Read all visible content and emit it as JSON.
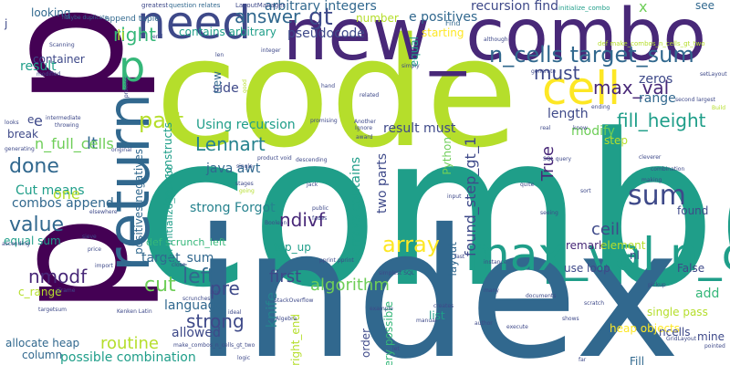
{
  "palette": {
    "yellow": "#fde725",
    "lime": "#b5de2b",
    "green": "#6ece58",
    "lightgreen": "#35b779",
    "teal": "#1f9e89",
    "cyan": "#26828e",
    "blue": "#31688e",
    "indigo": "#3e4989",
    "purple": "#482878",
    "darkpurple": "#440154"
  },
  "words": [
    {
      "text": "combo",
      "color": "teal"
    },
    {
      "text": "index",
      "color": "blue"
    },
    {
      "text": "code",
      "color": "lime"
    },
    {
      "text": "p",
      "color": "darkpurple"
    },
    {
      "text": "p",
      "color": "darkpurple"
    },
    {
      "text": "new_combo",
      "color": "purple"
    },
    {
      "text": "return",
      "color": "blue"
    },
    {
      "text": "need",
      "color": "indigo"
    },
    {
      "text": "cell",
      "color": "yellow"
    },
    {
      "text": "max_val n_cells",
      "color": "teal"
    },
    {
      "text": "p",
      "color": "lightgreen"
    },
    {
      "text": "n_cells target_sum",
      "color": "blue"
    },
    {
      "text": "sum",
      "color": "indigo"
    },
    {
      "text": "Lennart",
      "color": "cyan"
    },
    {
      "text": "part",
      "color": "lime"
    },
    {
      "text": "array",
      "color": "yellow"
    },
    {
      "text": "value",
      "color": "blue"
    },
    {
      "text": "done",
      "color": "blue"
    },
    {
      "text": "gt",
      "color": "indigo"
    },
    {
      "text": "right",
      "color": "lightgreen"
    },
    {
      "text": "answer",
      "color": "blue"
    },
    {
      "text": "fill_height",
      "color": "teal"
    },
    {
      "text": "max_val",
      "color": "purple"
    },
    {
      "text": "must",
      "color": "indigo"
    },
    {
      "text": "cut",
      "color": "green"
    },
    {
      "text": "left",
      "color": "blue"
    },
    {
      "text": "strong",
      "color": "indigo"
    },
    {
      "text": "pre",
      "color": "indigo"
    },
    {
      "text": "algorithm",
      "color": "green"
    },
    {
      "text": "first",
      "color": "indigo"
    },
    {
      "text": "ndivf",
      "color": "purple"
    },
    {
      "text": "nmodf",
      "color": "purple"
    },
    {
      "text": "ceil",
      "color": "indigo"
    },
    {
      "text": "True",
      "color": "purple"
    },
    {
      "text": "routine",
      "color": "lime"
    },
    {
      "text": "knife",
      "color": "cyan"
    },
    {
      "text": "found_step_gt_1",
      "color": "indigo"
    },
    {
      "text": "arbitrary integers",
      "color": "blue"
    },
    {
      "text": "recursion find",
      "color": "indigo"
    },
    {
      "text": "e positives",
      "color": "blue"
    },
    {
      "text": "pseudocode",
      "color": "indigo"
    },
    {
      "text": "contains arbitrary",
      "color": "teal"
    },
    {
      "text": "li",
      "color": "lime"
    },
    {
      "text": "x",
      "color": "green"
    },
    {
      "text": "result must",
      "color": "indigo"
    },
    {
      "text": "length",
      "color": "indigo"
    },
    {
      "text": "zeros",
      "color": "indigo"
    },
    {
      "text": "range",
      "color": "blue"
    },
    {
      "text": "modify",
      "color": "green"
    },
    {
      "text": "side",
      "color": "indigo"
    },
    {
      "text": "lt",
      "color": "blue"
    },
    {
      "text": "n_full_cells",
      "color": "green"
    },
    {
      "text": "e",
      "color": "indigo"
    },
    {
      "text": "Using recursion",
      "color": "teal"
    },
    {
      "text": "Cut means",
      "color": "teal"
    },
    {
      "text": "combos append",
      "color": "blue"
    },
    {
      "text": "equal sum",
      "color": "teal"
    },
    {
      "text": "one",
      "color": "lime"
    },
    {
      "text": "java awt",
      "color": "blue"
    },
    {
      "text": "strong Forgot",
      "color": "cyan"
    },
    {
      "text": "target_sum",
      "color": "blue"
    },
    {
      "text": "language",
      "color": "blue"
    },
    {
      "text": "allowed",
      "color": "indigo"
    },
    {
      "text": "possible combination",
      "color": "teal"
    },
    {
      "text": "allocate heap",
      "color": "blue"
    },
    {
      "text": "column",
      "color": "blue"
    },
    {
      "text": "c_range",
      "color": "lime"
    },
    {
      "text": "heap objects",
      "color": "yellow"
    },
    {
      "text": "single pass",
      "color": "lime"
    },
    {
      "text": "ncells",
      "color": "indigo"
    },
    {
      "text": "add",
      "color": "lightgreen"
    },
    {
      "text": "use loop",
      "color": "indigo"
    },
    {
      "text": "layout",
      "color": "blue"
    },
    {
      "text": "two parts",
      "color": "indigo"
    },
    {
      "text": "arrays contains",
      "color": "teal"
    },
    {
      "text": "positives negatives",
      "color": "blue"
    },
    {
      "text": "def scrunch_left",
      "color": "lightgreen"
    },
    {
      "text": "new",
      "color": "blue"
    },
    {
      "text": "result",
      "color": "teal"
    },
    {
      "text": "container",
      "color": "indigo"
    },
    {
      "text": "looking",
      "color": "blue"
    },
    {
      "text": "top_up",
      "color": "teal"
    },
    {
      "text": "remark",
      "color": "purple"
    },
    {
      "text": "element",
      "color": "lime"
    },
    {
      "text": "found",
      "color": "indigo"
    },
    {
      "text": "Python",
      "color": "green"
    },
    {
      "text": "equal",
      "color": "teal"
    },
    {
      "text": "starting",
      "color": "yellow"
    },
    {
      "text": "number",
      "color": "lime"
    },
    {
      "text": "see",
      "color": "blue"
    },
    {
      "text": "Fill",
      "color": "blue"
    },
    {
      "text": "mine",
      "color": "indigo"
    },
    {
      "text": "False",
      "color": "indigo"
    },
    {
      "text": "list",
      "color": "teal"
    },
    {
      "text": "every possible",
      "color": "lightgreen"
    },
    {
      "text": "order",
      "color": "indigo"
    },
    {
      "text": "right_end",
      "color": "lime"
    },
    {
      "text": "loop constructs",
      "color": "teal"
    },
    {
      "text": "def initialize_combo",
      "color": "teal"
    },
    {
      "text": "nl",
      "color": "indigo"
    },
    {
      "text": "step",
      "color": "lime"
    },
    {
      "text": "append tuple",
      "color": "blue"
    },
    {
      "text": "e",
      "color": "indigo"
    },
    {
      "text": "break",
      "color": "indigo"
    },
    {
      "text": "j",
      "color": "indigo"
    },
    {
      "text": "LayoutManager",
      "color": "indigo"
    },
    {
      "text": "greatest",
      "color": "indigo"
    },
    {
      "text": "question relates",
      "color": "blue"
    },
    {
      "text": "maybe duplicate",
      "color": "blue"
    },
    {
      "text": "initialize_combo",
      "color": "teal"
    },
    {
      "text": "def make_combos_n_cells_gt_two",
      "color": "lime"
    },
    {
      "text": "Scanning",
      "color": "indigo"
    },
    {
      "text": "modified",
      "color": "indigo"
    },
    {
      "text": "Find",
      "color": "blue"
    },
    {
      "text": "although",
      "color": "indigo"
    },
    {
      "text": "process",
      "color": "indigo"
    },
    {
      "text": "integer",
      "color": "indigo"
    },
    {
      "text": "end",
      "color": "indigo"
    },
    {
      "text": "generate",
      "color": "indigo"
    },
    {
      "text": "setLayout",
      "color": "indigo"
    },
    {
      "text": "second largest",
      "color": "indigo"
    },
    {
      "text": "Build",
      "color": "lime"
    },
    {
      "text": "ending",
      "color": "indigo"
    },
    {
      "text": "promising",
      "color": "indigo"
    },
    {
      "text": "Another",
      "color": "indigo"
    },
    {
      "text": "Ignore",
      "color": "indigo"
    },
    {
      "text": "award",
      "color": "indigo"
    },
    {
      "text": "intermediate",
      "color": "indigo"
    },
    {
      "text": "throwing",
      "color": "indigo"
    },
    {
      "text": "looks",
      "color": "indigo"
    },
    {
      "text": "generating",
      "color": "indigo"
    },
    {
      "text": "original",
      "color": "indigo"
    },
    {
      "text": "product void",
      "color": "indigo"
    },
    {
      "text": "descending",
      "color": "indigo"
    },
    {
      "text": "SQL query",
      "color": "indigo"
    },
    {
      "text": "combination",
      "color": "indigo"
    },
    {
      "text": "making",
      "color": "indigo"
    },
    {
      "text": "Jack",
      "color": "indigo"
    },
    {
      "text": "public",
      "color": "indigo"
    },
    {
      "text": "fades",
      "color": "indigo"
    },
    {
      "text": "Boolean",
      "color": "indigo"
    },
    {
      "text": "input",
      "color": "indigo"
    },
    {
      "text": "fast",
      "color": "indigo"
    },
    {
      "text": "simplest SQL",
      "color": "indigo"
    },
    {
      "text": "pprint pprint",
      "color": "indigo"
    },
    {
      "text": "StackOverflow",
      "color": "indigo"
    },
    {
      "text": "Kenken Latin",
      "color": "indigo"
    },
    {
      "text": "scrunches",
      "color": "indigo"
    },
    {
      "text": "targetsum",
      "color": "indigo"
    },
    {
      "text": "JFrame",
      "color": "indigo"
    },
    {
      "text": "import",
      "color": "indigo"
    },
    {
      "text": "price",
      "color": "indigo"
    },
    {
      "text": "sieve",
      "color": "indigo"
    },
    {
      "text": "ascending",
      "color": "indigo"
    },
    {
      "text": "documents",
      "color": "indigo"
    },
    {
      "text": "creates",
      "color": "indigo"
    },
    {
      "text": "example",
      "color": "indigo"
    },
    {
      "text": "GridLayout",
      "color": "indigo"
    },
    {
      "text": "pointed",
      "color": "indigo"
    },
    {
      "text": "far",
      "color": "indigo"
    },
    {
      "text": "related",
      "color": "indigo"
    },
    {
      "text": "good",
      "color": "lime"
    },
    {
      "text": "stages",
      "color": "indigo"
    },
    {
      "text": "going",
      "color": "lime"
    },
    {
      "text": "seeing",
      "color": "indigo"
    },
    {
      "text": "make_combos_n_cells_gt_two",
      "color": "indigo"
    },
    {
      "text": "Algebra",
      "color": "indigo"
    },
    {
      "text": "box",
      "color": "indigo"
    },
    {
      "text": "hand",
      "color": "indigo"
    },
    {
      "text": "real",
      "color": "indigo"
    },
    {
      "text": "sort",
      "color": "indigo"
    },
    {
      "text": "know",
      "color": "indigo"
    },
    {
      "text": "ideal",
      "color": "indigo"
    },
    {
      "text": "instance",
      "color": "indigo"
    },
    {
      "text": "execute",
      "color": "indigo"
    },
    {
      "text": "pickup",
      "color": "indigo"
    },
    {
      "text": "elsewhere",
      "color": "indigo"
    },
    {
      "text": "simply",
      "color": "indigo"
    },
    {
      "text": "cleverer",
      "color": "indigo"
    },
    {
      "text": "quite",
      "color": "indigo"
    },
    {
      "text": "author",
      "color": "indigo"
    },
    {
      "text": "many",
      "color": "indigo"
    },
    {
      "text": "let",
      "color": "indigo"
    },
    {
      "text": "logic",
      "color": "indigo"
    },
    {
      "text": "len",
      "color": "indigo"
    },
    {
      "text": "single",
      "color": "indigo"
    },
    {
      "text": "scratch",
      "color": "indigo"
    },
    {
      "text": "manual",
      "color": "indigo"
    },
    {
      "text": "close",
      "color": "indigo"
    },
    {
      "text": "shows",
      "color": "indigo"
    }
  ]
}
